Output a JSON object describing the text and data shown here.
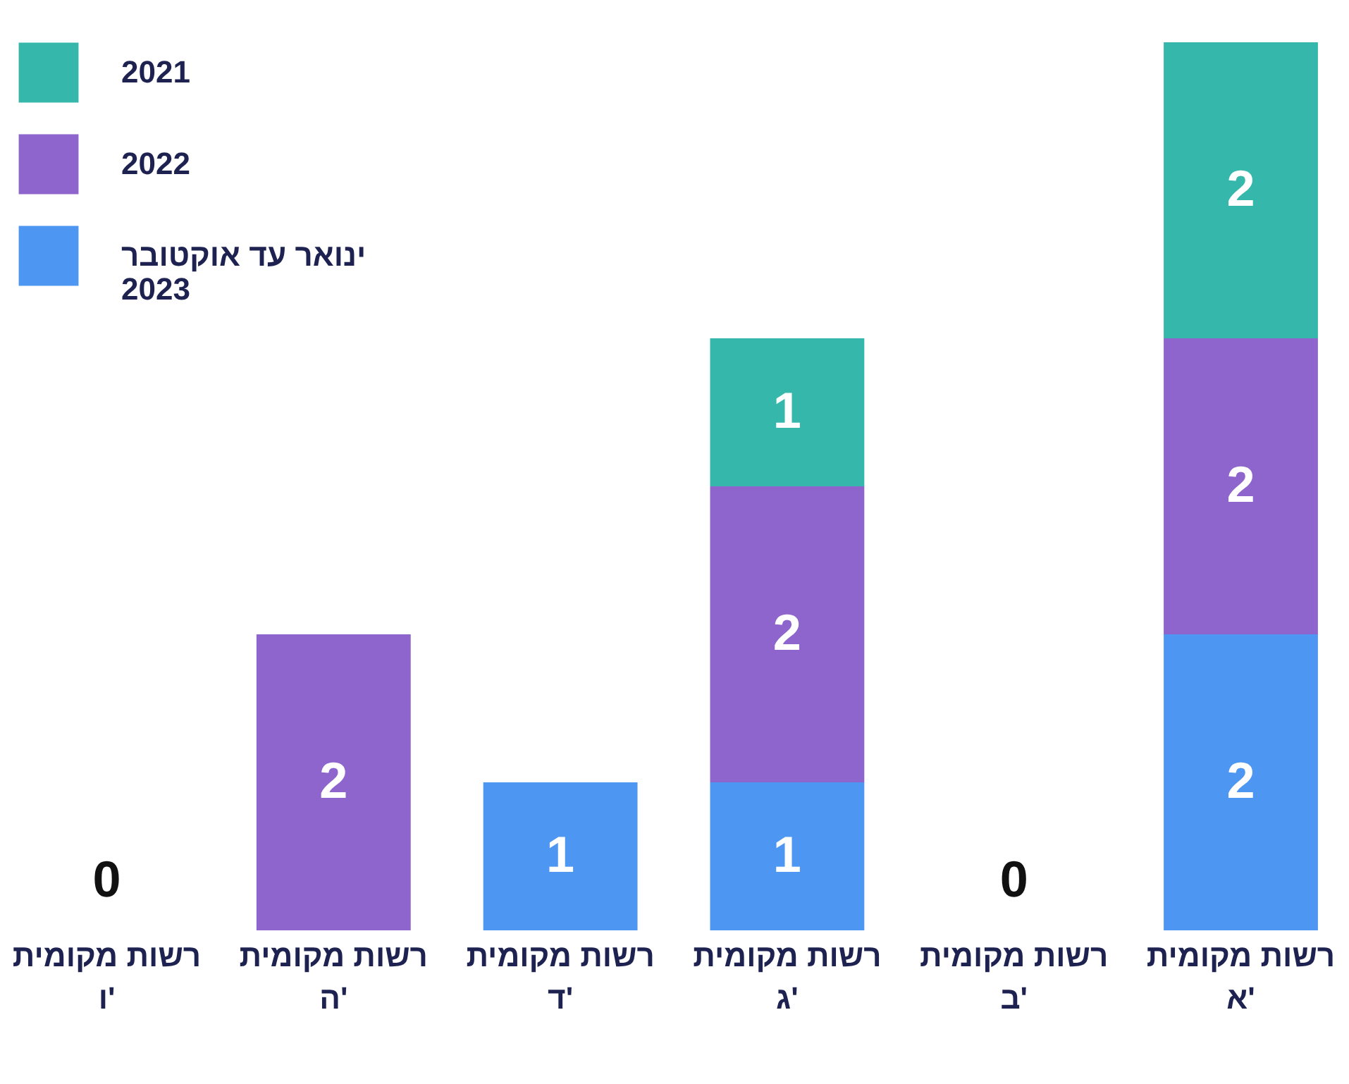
{
  "chart_data": {
    "type": "bar",
    "stacked": true,
    "categories": [
      "רשות מקומית ו'",
      "רשות מקומית ה'",
      "רשות מקומית ד'",
      "רשות מקומית ג'",
      "רשות מקומית ב'",
      "רשות מקומית א'"
    ],
    "series": [
      {
        "name": "ינואר עד אוקטובר 2023",
        "color": "#4d96f2",
        "values": [
          null,
          null,
          1,
          1,
          null,
          2
        ]
      },
      {
        "name": "2022",
        "color": "#8e65cc",
        "values": [
          null,
          2,
          null,
          2,
          null,
          2
        ]
      },
      {
        "name": "2021",
        "color": "#35b8ab",
        "values": [
          null,
          null,
          null,
          1,
          null,
          2
        ]
      }
    ],
    "data_labels": true,
    "totals": [
      "0",
      null,
      null,
      null,
      "0",
      null
    ],
    "legend": "top left"
  }
}
